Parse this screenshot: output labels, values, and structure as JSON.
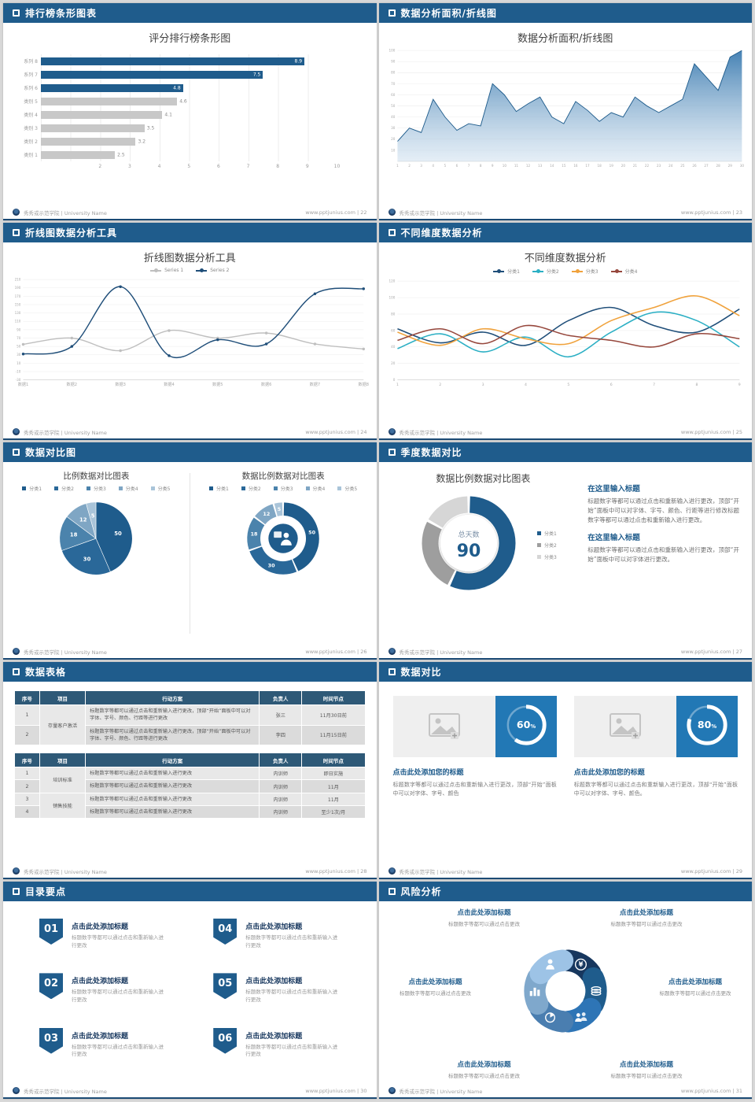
{
  "page": {
    "background": "#D8D8D8",
    "accent": "#1F5C8C"
  },
  "footer": {
    "university": "秀秀或示范学院 | University Name"
  },
  "slides": {
    "s1": {
      "header": "排行榜条形图表",
      "footer_right": "www.pptjunius.com | 22",
      "chart": {
        "type": "bar",
        "title": "评分排行榜条形图",
        "categories": [
          "系列 8",
          "系列 7",
          "系列 6",
          "类别 5",
          "类别 4",
          "类别 3",
          "类别 2",
          "类别 1"
        ],
        "values": [
          8.9,
          7.5,
          4.8,
          4.6,
          4.1,
          3.5,
          3.2,
          2.5
        ],
        "highlight_count": 3,
        "bar_color": "#1F5C8C",
        "muted_color": "#C8C8C8",
        "xlim": [
          0,
          10
        ],
        "x_ticks": [
          2,
          3,
          4,
          5,
          6,
          7,
          8,
          9,
          10
        ]
      }
    },
    "s2": {
      "header": "数据分析面积/折线图",
      "footer_right": "www.pptjunius.com | 23",
      "chart": {
        "type": "area",
        "title": "数据分析面积/折线图",
        "x_labels": [
          "1",
          "2",
          "3",
          "4",
          "5",
          "6",
          "7",
          "8",
          "9",
          "10",
          "11",
          "12",
          "13",
          "14",
          "15",
          "16",
          "17",
          "18",
          "19",
          "20",
          "21",
          "22",
          "23",
          "24",
          "25",
          "26",
          "27",
          "28",
          "29",
          "30"
        ],
        "y_ticks": [
          100,
          90,
          80,
          70,
          60,
          50,
          40,
          30,
          20,
          10
        ],
        "ylim": [
          0,
          100
        ],
        "values": [
          18,
          30,
          26,
          56,
          40,
          28,
          34,
          32,
          70,
          60,
          45,
          52,
          58,
          40,
          34,
          54,
          46,
          36,
          44,
          40,
          58,
          50,
          44,
          50,
          56,
          88,
          76,
          64,
          94,
          100
        ],
        "line_color": "#1F5C8C",
        "fill_top": "#3B7BB0",
        "fill_bottom": "#CFE0EF"
      }
    },
    "s3": {
      "header": "折线图数据分析工具",
      "footer_right": "www.pptjunius.com | 24",
      "chart": {
        "type": "line",
        "title": "折线图数据分析工具",
        "x_labels": [
          "数据1",
          "数据2",
          "数据3",
          "数据4",
          "数据5",
          "数据6",
          "数据7",
          "数据8"
        ],
        "ylim": [
          -30,
          210
        ],
        "y_ticks": [
          210,
          190,
          170,
          150,
          130,
          110,
          90,
          70,
          50,
          30,
          10,
          -10,
          -30
        ],
        "series": [
          {
            "name": "Series 1",
            "color": "#BFBFBF",
            "values": [
              55,
              70,
              40,
              88,
              70,
              82,
              56,
              44
            ]
          },
          {
            "name": "Series 2",
            "color": "#1F4E79",
            "values": [
              32,
              50,
              193,
              28,
              66,
              56,
              176,
              188
            ]
          }
        ]
      }
    },
    "s4": {
      "header": "不同维度数据分析",
      "footer_right": "www.pptjunius.com | 25",
      "chart": {
        "type": "line",
        "title": "不同维度数据分析",
        "x_labels": [
          "1",
          "2",
          "3",
          "4",
          "5",
          "6",
          "7",
          "8",
          "9"
        ],
        "ylim": [
          0,
          120
        ],
        "y_ticks": [
          120,
          100,
          80,
          60,
          40,
          20,
          0
        ],
        "series": [
          {
            "name": "分类1",
            "color": "#1F4E79",
            "values": [
              62,
              45,
              58,
              42,
              72,
              88,
              66,
              58,
              86
            ]
          },
          {
            "name": "分类2",
            "color": "#2BAFC4",
            "values": [
              38,
              56,
              34,
              52,
              28,
              58,
              82,
              72,
              40
            ]
          },
          {
            "name": "分类3",
            "color": "#F0A23C",
            "values": [
              58,
              42,
              62,
              50,
              44,
              72,
              88,
              102,
              78
            ]
          },
          {
            "name": "分类4",
            "color": "#96473C",
            "values": [
              48,
              62,
              44,
              66,
              54,
              48,
              40,
              56,
              50
            ]
          }
        ]
      }
    },
    "s5": {
      "header": "数据对比图",
      "footer_right": "www.pptjunius.com | 26",
      "left": {
        "title": "比例数据对比图表",
        "chart": {
          "type": "pie",
          "labels": [
            "分类1",
            "分类2",
            "分类3",
            "分类4",
            "分类5"
          ],
          "values": [
            50,
            30,
            18,
            12,
            5
          ],
          "colors": [
            "#1F5C8C",
            "#2A6899",
            "#4B83AC",
            "#7FA6C4",
            "#A9C4D9"
          ]
        }
      },
      "right": {
        "title": "数据比例数据对比图表",
        "chart": {
          "type": "donut",
          "labels": [
            "分类1",
            "分类2",
            "分类3",
            "分类4",
            "分类5"
          ],
          "values": [
            50,
            30,
            18,
            12,
            5
          ],
          "colors": [
            "#1F5C8C",
            "#2A6899",
            "#4B83AC",
            "#7FA6C4",
            "#A9C4D9"
          ]
        }
      }
    },
    "s6": {
      "header": "季度数据对比",
      "footer_right": "www.pptjunius.com | 27",
      "title": "数据比例数据对比图表",
      "chart": {
        "type": "donut",
        "labels": [
          "分类1",
          "分类2",
          "分类3"
        ],
        "values": [
          57,
          26,
          17
        ],
        "colors": [
          "#1F5C8C",
          "#9E9E9E",
          "#D6D6D6"
        ],
        "center_label": "总天数",
        "center_value": "90"
      },
      "blocks": [
        {
          "heading": "在这里输入标题",
          "body": "标题数字等都可以通过点击和重新输入进行更改，顶部“开始”面板中可以对字体、字号、颜色、行距等进行修改标题数字等都可以通过点击和重新输入进行更改。"
        },
        {
          "heading": "在这里输入标题",
          "body": "标题数字等都可以通过点击和重新输入进行更改，顶部“开始”面板中可以对字体进行更改。"
        }
      ]
    },
    "s7": {
      "header": "数据表格",
      "footer_right": "www.pptjunius.com | 28",
      "columns": [
        "序号",
        "项目",
        "行动方案",
        "负责人",
        "时间节点"
      ],
      "tables": [
        {
          "rows": [
            {
              "no": "1",
              "project": "存量客户激活",
              "span": 2,
              "plan": "标题数字等都可以通过点击和重新输入进行更改，顶部“开始”面板中可以对字体、字号、颜色、行距等进行更改",
              "owner": "张三",
              "time": "11月30日前"
            },
            {
              "no": "2",
              "plan": "标题数字等都可以通过点击和重新输入进行更改，顶部“开始”面板中可以对字体、字号、颜色、行距等进行更改",
              "owner": "李四",
              "time": "11月15日前"
            }
          ]
        },
        {
          "rows": [
            {
              "no": "1",
              "project": "培训标准",
              "span": 2,
              "plan": "标题数字等都可以通过点击和重新输入进行更改",
              "owner": "内训师",
              "time": "即日实施"
            },
            {
              "no": "2",
              "plan": "标题数字等都可以通过点击和重新输入进行更改",
              "owner": "内训师",
              "time": "11月"
            },
            {
              "no": "3",
              "project": "销售技能",
              "span": 2,
              "plan": "标题数字等都可以通过点击和重新输入进行更改",
              "owner": "内训师",
              "time": "11月"
            },
            {
              "no": "4",
              "plan": "标题数字等都可以通过点击和重新输入进行更改",
              "owner": "内训师",
              "time": "至少1次/月"
            }
          ]
        }
      ]
    },
    "s8": {
      "header": "数据对比",
      "footer_right": "www.pptjunius.com | 29",
      "square_color": "#2278B5",
      "cards": [
        {
          "percent": 60,
          "title": "点击此处添加您的标题",
          "body": "标题数字等都可以通过点击和重新输入进行更改，顶部“开始”面板中可以对字体、字号、颜色"
        },
        {
          "percent": 80,
          "title": "点击此处添加您的标题",
          "body": "标题数字等都可以通过点击和重新输入进行更改，顶部“开始”面板中可以对字体、字号、颜色。"
        }
      ]
    },
    "s9": {
      "header": "目录要点",
      "footer_right": "www.pptjunius.com | 30",
      "items": [
        {
          "num": "01",
          "title": "点击此处添加标题",
          "caption": "标题数字等都可以通过点击和重新输入进行更改"
        },
        {
          "num": "02",
          "title": "点击此处添加标题",
          "caption": "标题数字等都可以通过点击和重新输入进行更改"
        },
        {
          "num": "03",
          "title": "点击此处添加标题",
          "caption": "标题数字等都可以通过点击和重新输入进行更改"
        },
        {
          "num": "04",
          "title": "点击此处添加标题",
          "caption": "标题数字等都可以通过点击和重新输入进行更改"
        },
        {
          "num": "05",
          "title": "点击此处添加标题",
          "caption": "标题数字等都可以通过点击和重新输入进行更改"
        },
        {
          "num": "06",
          "title": "点击此处添加标题",
          "caption": "标题数字等都可以通过点击和重新输入进行更改"
        }
      ]
    },
    "s10": {
      "header": "风险分析",
      "footer_right": "www.pptjunius.com | 31",
      "petal_colors": [
        "#17375E",
        "#1F5C8C",
        "#2E75B6",
        "#4A7EB0",
        "#7FA8CC",
        "#9DC3E6"
      ],
      "petal_icons": [
        "money-icon",
        "coins-icon",
        "people-icon",
        "pie-icon",
        "chart-icon",
        "person-icon"
      ],
      "items": [
        {
          "title": "点击此处添加标题",
          "caption": "标题数字等都可以通过点击更改"
        },
        {
          "title": "点击此处添加标题",
          "caption": "标题数字等都可以通过点击更改"
        },
        {
          "title": "点击此处添加标题",
          "caption": "标题数字等都可以通过点击更改"
        },
        {
          "title": "点击此处添加标题",
          "caption": "标题数字等都可以通过点击更改"
        },
        {
          "title": "点击此处添加标题",
          "caption": "标题数字等都可以通过点击更改"
        },
        {
          "title": "点击此处添加标题",
          "caption": "标题数字等都可以通过点击更改"
        }
      ]
    }
  }
}
